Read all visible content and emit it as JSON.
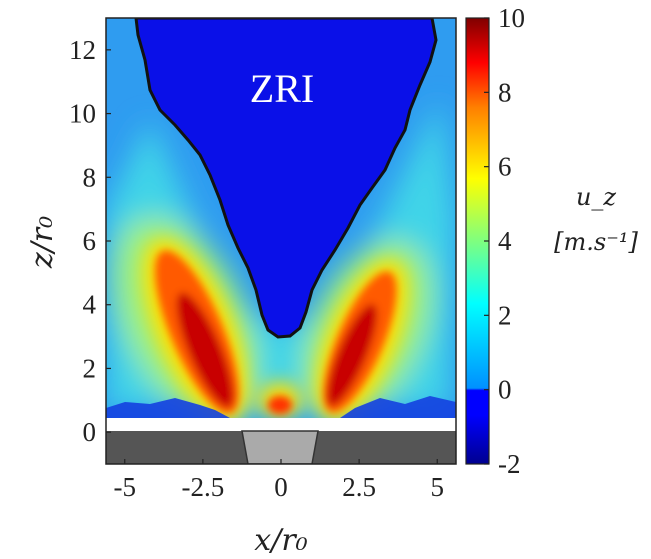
{
  "chart_data": {
    "type": "heatmap",
    "title": "",
    "xlabel": "x/r₀",
    "ylabel": "z/r₀",
    "xlim": [
      -5.6,
      5.6
    ],
    "ylim": [
      -1,
      13
    ],
    "x_ticks": [
      "-5",
      "-2.5",
      "0",
      "2.5",
      "5"
    ],
    "x_tick_values": [
      -5,
      -2.5,
      0,
      2.5,
      5
    ],
    "y_ticks": [
      "0",
      "2",
      "4",
      "6",
      "8",
      "10",
      "12"
    ],
    "y_tick_values": [
      0,
      2,
      4,
      6,
      8,
      10,
      12
    ],
    "annotation": "ZRI",
    "colorbar": {
      "label_line1": "u_z",
      "label_line2": "[m.s⁻¹]",
      "range": [
        -2,
        10
      ],
      "ticks": [
        "-2",
        "0",
        "2",
        "4",
        "6",
        "8",
        "10"
      ],
      "tick_values": [
        -2,
        0,
        2,
        4,
        6,
        8,
        10
      ],
      "colormap": "jet"
    },
    "features": {
      "jet_peak_value": 10,
      "left_jet_peak": {
        "x": -2.6,
        "z": 3.0
      },
      "right_jet_peak": {
        "x": 2.6,
        "z": 3.0
      },
      "zri_min_z": 3.0,
      "zri_region_value": -1,
      "background_value": 1.5
    }
  }
}
